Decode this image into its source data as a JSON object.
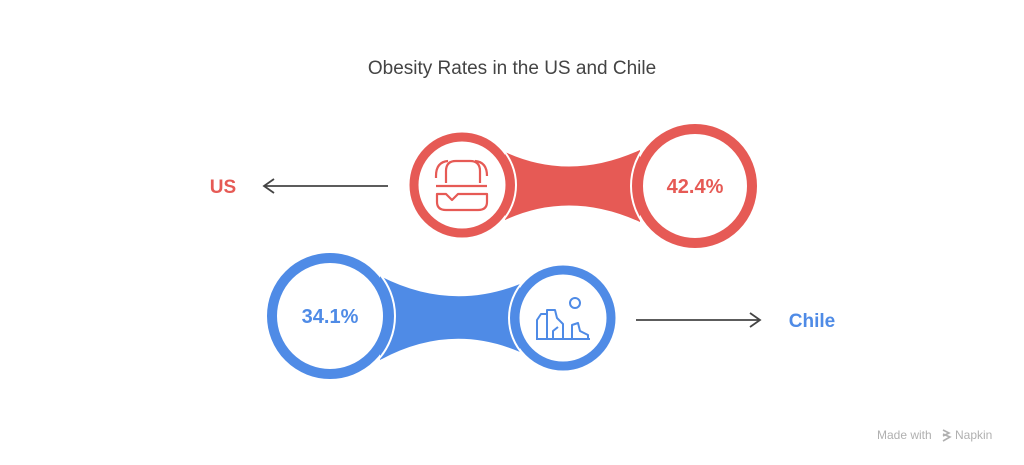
{
  "title": "Obesity Rates in the US and Chile",
  "items": [
    {
      "label": "US",
      "value": "42.4%",
      "icon": "burger-icon",
      "color": "#E65A55"
    },
    {
      "label": "Chile",
      "value": "34.1%",
      "icon": "mountains-sun-icon",
      "color": "#4F8BE6"
    }
  ],
  "watermark": {
    "text": "Made with",
    "brand": "Napkin",
    "color": "#B0B0B0"
  },
  "text_color": "#444444",
  "arrow_color": "#444444"
}
